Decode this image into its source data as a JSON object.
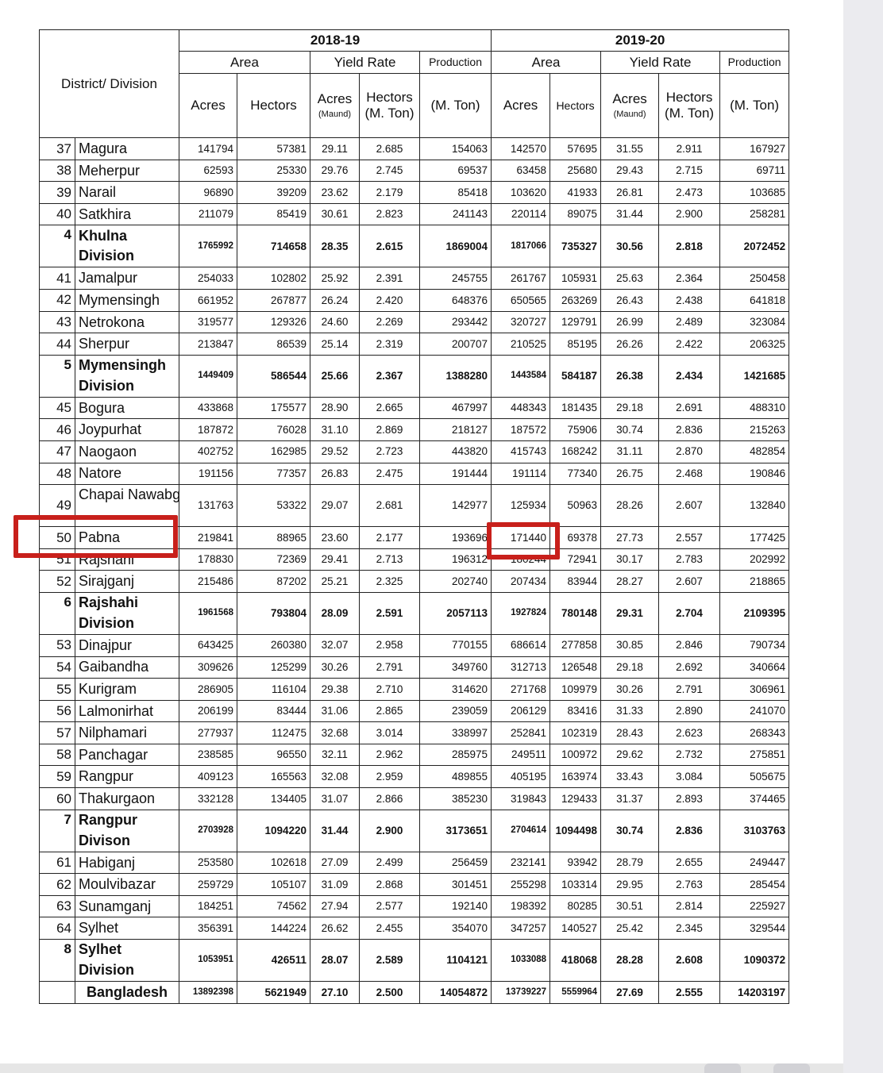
{
  "header": {
    "district_label": "District/ Division",
    "years": [
      "2018-19",
      "2019-20"
    ],
    "groups": {
      "area": "Area",
      "yield": "Yield Rate",
      "production": "Production"
    },
    "sub": {
      "acres": "Acres",
      "hectors": "Hectors",
      "yield_acres": "Acres",
      "maund": "(Maund)",
      "hectors_mton": "Hectors (M. Ton)",
      "production_unit": "(M. Ton)"
    }
  },
  "rows": [
    {
      "no": "37",
      "name": "Magura",
      "v": [
        "141794",
        "57381",
        "29.11",
        "2.685",
        "154063",
        "142570",
        "57695",
        "31.55",
        "2.911",
        "167927"
      ]
    },
    {
      "no": "38",
      "name": "Meherpur",
      "v": [
        "62593",
        "25330",
        "29.76",
        "2.745",
        "69537",
        "63458",
        "25680",
        "29.43",
        "2.715",
        "69711"
      ]
    },
    {
      "no": "39",
      "name": "Narail",
      "v": [
        "96890",
        "39209",
        "23.62",
        "2.179",
        "85418",
        "103620",
        "41933",
        "26.81",
        "2.473",
        "103685"
      ]
    },
    {
      "no": "40",
      "name": "Satkhira",
      "v": [
        "211079",
        "85419",
        "30.61",
        "2.823",
        "241143",
        "220114",
        "89075",
        "31.44",
        "2.900",
        "258281"
      ]
    },
    {
      "no": "4",
      "name": "Khulna Division",
      "v": [
        "1765992",
        "714658",
        "28.35",
        "2.615",
        "1869004",
        "1817066",
        "735327",
        "30.56",
        "2.818",
        "2072452"
      ]
    },
    {
      "no": "41",
      "name": "Jamalpur",
      "v": [
        "254033",
        "102802",
        "25.92",
        "2.391",
        "245755",
        "261767",
        "105931",
        "25.63",
        "2.364",
        "250458"
      ]
    },
    {
      "no": "42",
      "name": "Mymensingh",
      "v": [
        "661952",
        "267877",
        "26.24",
        "2.420",
        "648376",
        "650565",
        "263269",
        "26.43",
        "2.438",
        "641818"
      ]
    },
    {
      "no": "43",
      "name": "Netrokona",
      "v": [
        "319577",
        "129326",
        "24.60",
        "2.269",
        "293442",
        "320727",
        "129791",
        "26.99",
        "2.489",
        "323084"
      ]
    },
    {
      "no": "44",
      "name": "Sherpur",
      "v": [
        "213847",
        "86539",
        "25.14",
        "2.319",
        "200707",
        "210525",
        "85195",
        "26.26",
        "2.422",
        "206325"
      ]
    },
    {
      "no": "5",
      "name": "Mymensingh Division",
      "v": [
        "1449409",
        "586544",
        "25.66",
        "2.367",
        "1388280",
        "1443584",
        "584187",
        "26.38",
        "2.434",
        "1421685"
      ]
    },
    {
      "no": "45",
      "name": "Bogura",
      "v": [
        "433868",
        "175577",
        "28.90",
        "2.665",
        "467997",
        "448343",
        "181435",
        "29.18",
        "2.691",
        "488310"
      ]
    },
    {
      "no": "46",
      "name": "Joypurhat",
      "v": [
        "187872",
        "76028",
        "31.10",
        "2.869",
        "218127",
        "187572",
        "75906",
        "30.74",
        "2.836",
        "215263"
      ]
    },
    {
      "no": "47",
      "name": "Naogaon",
      "v": [
        "402752",
        "162985",
        "29.52",
        "2.723",
        "443820",
        "415743",
        "168242",
        "31.11",
        "2.870",
        "482854"
      ]
    },
    {
      "no": "48",
      "name": "Natore",
      "v": [
        "191156",
        "77357",
        "26.83",
        "2.475",
        "191444",
        "191114",
        "77340",
        "26.75",
        "2.468",
        "190846"
      ]
    },
    {
      "no": "49",
      "name": "Chapai Nawabganj",
      "v": [
        "131763",
        "53322",
        "29.07",
        "2.681",
        "142977",
        "125934",
        "50963",
        "28.26",
        "2.607",
        "132840"
      ]
    },
    {
      "no": "50",
      "name": "Pabna",
      "v": [
        "219841",
        "88965",
        "23.60",
        "2.177",
        "193696",
        "171440",
        "69378",
        "27.73",
        "2.557",
        "177425"
      ]
    },
    {
      "no": "51",
      "name": "Rajshahi",
      "v": [
        "178830",
        "72369",
        "29.41",
        "2.713",
        "196312",
        "180244",
        "72941",
        "30.17",
        "2.783",
        "202992"
      ]
    },
    {
      "no": "52",
      "name": "Sirajganj",
      "v": [
        "215486",
        "87202",
        "25.21",
        "2.325",
        "202740",
        "207434",
        "83944",
        "28.27",
        "2.607",
        "218865"
      ]
    },
    {
      "no": "6",
      "name": "Rajshahi Division",
      "v": [
        "1961568",
        "793804",
        "28.09",
        "2.591",
        "2057113",
        "1927824",
        "780148",
        "29.31",
        "2.704",
        "2109395"
      ]
    },
    {
      "no": "53",
      "name": "Dinajpur",
      "v": [
        "643425",
        "260380",
        "32.07",
        "2.958",
        "770155",
        "686614",
        "277858",
        "30.85",
        "2.846",
        "790734"
      ]
    },
    {
      "no": "54",
      "name": "Gaibandha",
      "v": [
        "309626",
        "125299",
        "30.26",
        "2.791",
        "349760",
        "312713",
        "126548",
        "29.18",
        "2.692",
        "340664"
      ]
    },
    {
      "no": "55",
      "name": "Kurigram",
      "v": [
        "286905",
        "116104",
        "29.38",
        "2.710",
        "314620",
        "271768",
        "109979",
        "30.26",
        "2.791",
        "306961"
      ]
    },
    {
      "no": "56",
      "name": "Lalmonirhat",
      "v": [
        "206199",
        "83444",
        "31.06",
        "2.865",
        "239059",
        "206129",
        "83416",
        "31.33",
        "2.890",
        "241070"
      ]
    },
    {
      "no": "57",
      "name": "Nilphamari",
      "v": [
        "277937",
        "112475",
        "32.68",
        "3.014",
        "338997",
        "252841",
        "102319",
        "28.43",
        "2.623",
        "268343"
      ]
    },
    {
      "no": "58",
      "name": "Panchagar",
      "v": [
        "238585",
        "96550",
        "32.11",
        "2.962",
        "285975",
        "249511",
        "100972",
        "29.62",
        "2.732",
        "275851"
      ]
    },
    {
      "no": "59",
      "name": "Rangpur",
      "v": [
        "409123",
        "165563",
        "32.08",
        "2.959",
        "489855",
        "405195",
        "163974",
        "33.43",
        "3.084",
        "505675"
      ]
    },
    {
      "no": "60",
      "name": "Thakurgaon",
      "v": [
        "332128",
        "134405",
        "31.07",
        "2.866",
        "385230",
        "319843",
        "129433",
        "31.37",
        "2.893",
        "374465"
      ]
    },
    {
      "no": "7",
      "name": "Rangpur Divison",
      "v": [
        "2703928",
        "1094220",
        "31.44",
        "2.900",
        "3173651",
        "2704614",
        "1094498",
        "30.74",
        "2.836",
        "3103763"
      ]
    },
    {
      "no": "61",
      "name": "Habiganj",
      "v": [
        "253580",
        "102618",
        "27.09",
        "2.499",
        "256459",
        "232141",
        "93942",
        "28.79",
        "2.655",
        "249447"
      ]
    },
    {
      "no": "62",
      "name": "Moulvibazar",
      "v": [
        "259729",
        "105107",
        "31.09",
        "2.868",
        "301451",
        "255298",
        "103314",
        "29.95",
        "2.763",
        "285454"
      ]
    },
    {
      "no": "63",
      "name": "Sunamganj",
      "v": [
        "184251",
        "74562",
        "27.94",
        "2.577",
        "192140",
        "198392",
        "80285",
        "30.51",
        "2.814",
        "225927"
      ]
    },
    {
      "no": "64",
      "name": "Sylhet",
      "v": [
        "356391",
        "144224",
        "26.62",
        "2.455",
        "354070",
        "347257",
        "140527",
        "25.42",
        "2.345",
        "329544"
      ]
    },
    {
      "no": "8",
      "name": "Sylhet Division",
      "v": [
        "1053951",
        "426511",
        "28.07",
        "2.589",
        "1104121",
        "1033088",
        "418068",
        "28.28",
        "2.608",
        "1090372"
      ]
    }
  ],
  "total": {
    "name": "Bangladesh",
    "v": [
      "13892398",
      "5621949",
      "27.10",
      "2.500",
      "14054872",
      "13739227",
      "5559964",
      "27.69",
      "2.555",
      "14203197"
    ]
  },
  "highlights": {
    "color": "#c8201b",
    "targets": [
      "Pabna row label",
      "Pabna 2019-20 Area Acres 171440"
    ]
  },
  "colors": {
    "border": "#222222",
    "sidebar": "#ebebef"
  }
}
